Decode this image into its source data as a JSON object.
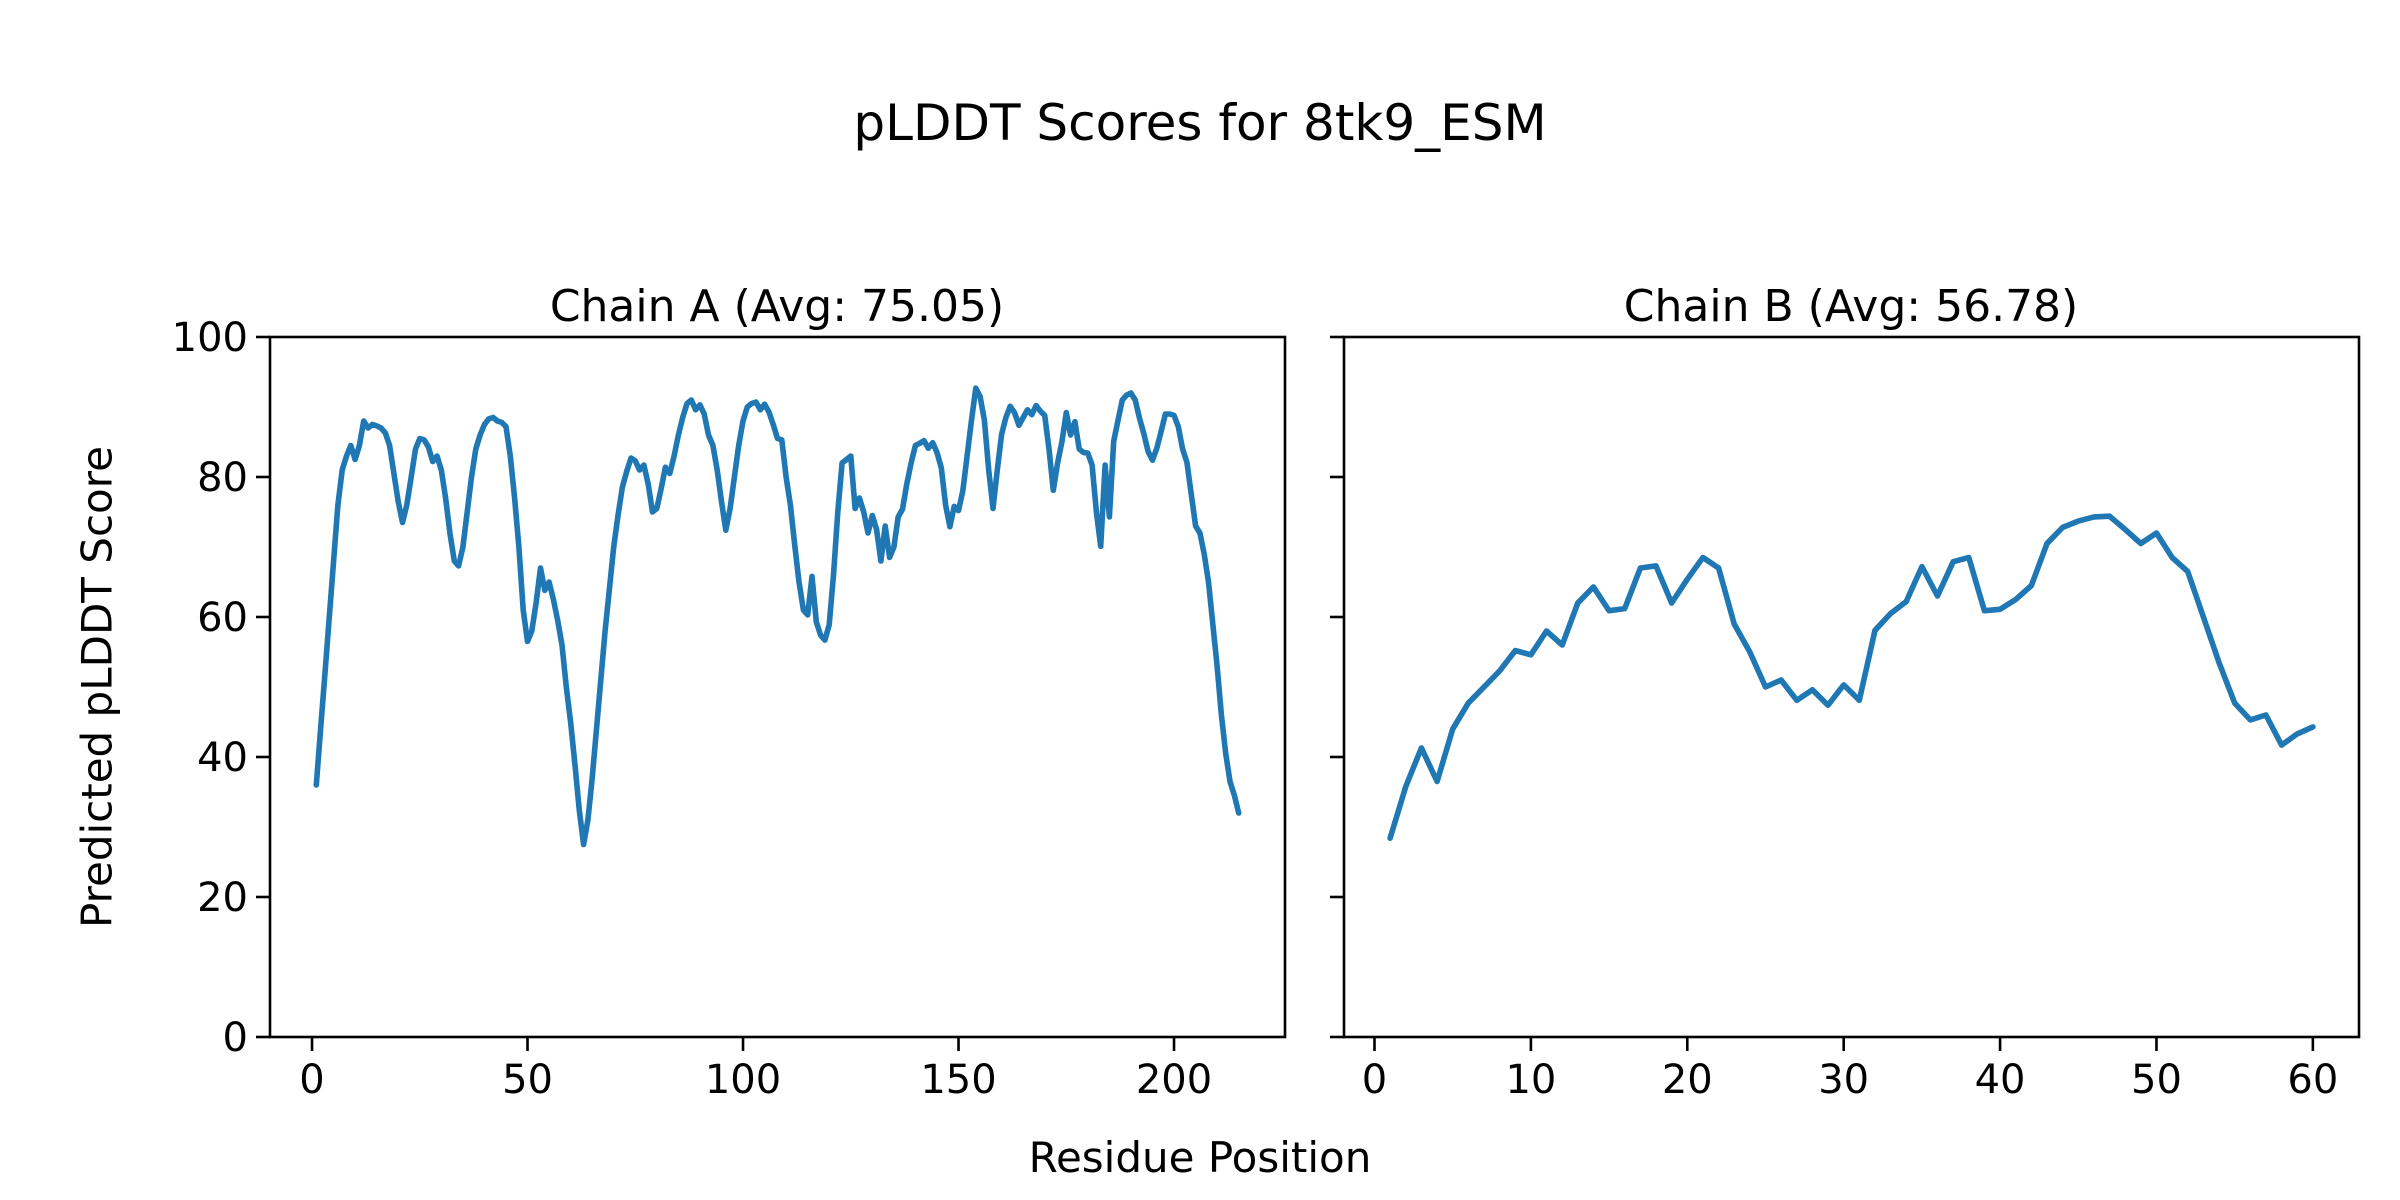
{
  "figure": {
    "suptitle": "pLDDT Scores for 8tk9_ESM",
    "xlabel": "Residue Position",
    "ylabel": "Predicted pLDDT Score",
    "line_color": "#1f77b4",
    "spine_color": "#000000",
    "background_color": "#ffffff"
  },
  "chart_data": [
    {
      "type": "line",
      "title": "Chain A (Avg: 75.05)",
      "series_name": "Chain A pLDDT",
      "avg": 75.05,
      "x_start": 1,
      "xticks": [
        0,
        50,
        100,
        150,
        200
      ],
      "yticks": [
        0,
        20,
        40,
        60,
        80,
        100
      ],
      "xlim": [
        -9.75,
        225.75
      ],
      "ylim": [
        0,
        100
      ],
      "values": [
        36,
        44,
        52,
        60,
        68,
        76,
        81,
        83,
        84.5,
        82.5,
        84.5,
        88,
        87,
        87.5,
        87.3,
        87,
        86.3,
        84.5,
        80.5,
        76.5,
        73.5,
        76,
        80,
        84,
        85.5,
        85.3,
        84.3,
        82.2,
        83,
        81,
        77,
        72,
        68,
        67.3,
        70,
        75,
        80,
        84,
        86,
        87.5,
        88.3,
        88.5,
        88,
        87.8,
        87.2,
        83,
        77,
        70,
        61,
        56.5,
        58,
        62,
        67,
        63.8,
        65,
        62.5,
        59.5,
        56,
        50,
        45,
        39,
        32.5,
        27.5,
        31,
        37,
        44,
        51,
        58,
        64,
        70,
        74.5,
        78.5,
        80.8,
        82.7,
        82.3,
        81,
        81.7,
        79,
        75,
        75.5,
        78.3,
        81.4,
        80.5,
        83,
        86,
        88.5,
        90.5,
        91,
        89.6,
        90.3,
        89,
        86,
        84.5,
        81,
        76.5,
        72.4,
        75.5,
        80,
        84.5,
        88,
        90,
        90.5,
        90.7,
        89.6,
        90.4,
        89.3,
        87.5,
        85.5,
        85.3,
        80,
        76,
        70.3,
        65,
        61,
        60.3,
        65.8,
        59.3,
        57.4,
        56.7,
        58.9,
        66,
        75,
        82,
        82.5,
        83,
        75.5,
        77,
        75,
        72,
        74.5,
        72.5,
        68,
        73,
        68.5,
        70,
        74.3,
        75.4,
        79,
        82,
        84.5,
        84.8,
        85.2,
        84.1,
        84.9,
        83.5,
        81.3,
        76,
        72.9,
        75.8,
        75.2,
        78,
        83,
        88,
        92.7,
        91.5,
        88.1,
        81,
        75.5,
        81,
        86.1,
        88.5,
        90.1,
        89.2,
        87.4,
        88.5,
        89.6,
        88.9,
        90.2,
        89.4,
        88.8,
        84,
        78.1,
        82,
        85.1,
        89.2,
        86,
        87.9,
        84,
        83.5,
        83.4,
        81.7,
        75,
        70.1,
        81.7,
        74.3,
        85.1,
        88.1,
        91,
        91.7,
        92,
        91,
        88.4,
        86.2,
        83.6,
        82.4,
        84.1,
        86.5,
        89,
        89,
        88.8,
        87.2,
        84,
        82.1,
        77.5,
        73,
        72,
        69,
        65,
        59,
        53,
        46,
        40.5,
        36.5,
        34.5,
        32
      ]
    },
    {
      "type": "line",
      "title": "Chain B (Avg: 56.78)",
      "series_name": "Chain B pLDDT",
      "avg": 56.78,
      "x_start": 1,
      "xticks": [
        0,
        10,
        20,
        30,
        40,
        50,
        60
      ],
      "yticks": [
        0,
        20,
        40,
        60,
        80,
        100
      ],
      "xlim": [
        -1.95,
        62.95
      ],
      "ylim": [
        0,
        100
      ],
      "values": [
        28.4,
        35.8,
        41.3,
        36.5,
        44,
        47.7,
        50,
        52.3,
        55.2,
        54.6,
        58,
        56,
        62,
        64.3,
        60.9,
        61.2,
        67,
        67.3,
        62,
        65.4,
        68.5,
        67,
        59,
        55,
        50,
        51,
        48.1,
        49.6,
        47.4,
        50.3,
        48.1,
        58.1,
        60.5,
        62.2,
        67.2,
        63,
        67.9,
        68.5,
        60.9,
        61.1,
        62.5,
        64.5,
        70.5,
        72.8,
        73.7,
        74.3,
        74.4,
        72.5,
        70.5,
        72,
        68.5,
        66.5,
        60,
        53.5,
        47.7,
        45.3,
        46,
        41.7,
        43.3,
        44.3
      ]
    }
  ]
}
